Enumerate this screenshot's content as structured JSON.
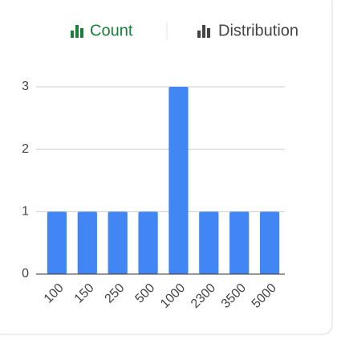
{
  "tabs": [
    "Count",
    "Distribution"
  ],
  "chart_data": {
    "type": "bar",
    "categories": [
      "100",
      "150",
      "250",
      "500",
      "1000",
      "2300",
      "3500",
      "5000"
    ],
    "values": [
      1,
      1,
      1,
      1,
      3,
      1,
      1,
      1
    ],
    "color": "#4285f4",
    "ylim": [
      0,
      3
    ],
    "yticks": [
      0,
      1,
      2,
      3
    ],
    "grid": true
  }
}
